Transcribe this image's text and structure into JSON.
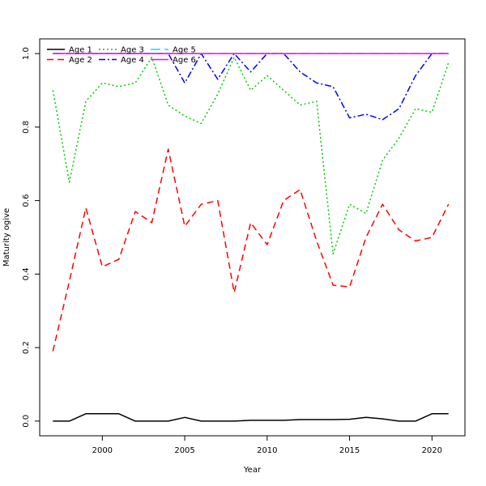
{
  "chart_data": {
    "type": "line",
    "title": "",
    "xlabel": "Year",
    "ylabel": "Maturity ogive",
    "xlim": [
      1996.2,
      2022.0
    ],
    "ylim": [
      -0.04,
      1.04
    ],
    "xticks": [
      2000,
      2005,
      2010,
      2015,
      2020
    ],
    "yticks": [
      0.0,
      0.2,
      0.4,
      0.6,
      0.8,
      1.0
    ],
    "xtick_labels": [
      "2000",
      "2005",
      "2010",
      "2015",
      "2020"
    ],
    "ytick_labels": [
      "0.0",
      "0.2",
      "0.4",
      "0.6",
      "0.8",
      "1.0"
    ],
    "grid": false,
    "legend_position": "top-left",
    "x": [
      1997,
      1998,
      1999,
      2000,
      2001,
      2002,
      2003,
      2004,
      2005,
      2006,
      2007,
      2008,
      2009,
      2010,
      2011,
      2012,
      2013,
      2014,
      2015,
      2016,
      2017,
      2018,
      2019,
      2020,
      2021
    ],
    "series": [
      {
        "name": "Age 1",
        "color": "#000000",
        "dash": "solid",
        "values": [
          0.0,
          0.0,
          0.02,
          0.02,
          0.02,
          0.0,
          0.0,
          0.0,
          0.01,
          0.0,
          0.0,
          0.0,
          0.002,
          0.002,
          0.002,
          0.004,
          0.004,
          0.004,
          0.005,
          0.01,
          0.006,
          0.0,
          0.0,
          0.02,
          0.02
        ]
      },
      {
        "name": "Age 2",
        "color": "#ff0000",
        "dash": "dashed",
        "values": [
          0.19,
          0.38,
          0.58,
          0.42,
          0.44,
          0.57,
          0.54,
          0.74,
          0.53,
          0.59,
          0.6,
          0.35,
          0.54,
          0.48,
          0.6,
          0.63,
          0.49,
          0.37,
          0.365,
          0.5,
          0.59,
          0.52,
          0.49,
          0.5,
          0.59
        ]
      },
      {
        "name": "Age 3",
        "color": "#00cc00",
        "dash": "dotted",
        "values": [
          0.9,
          0.65,
          0.87,
          0.92,
          0.91,
          0.92,
          0.99,
          0.86,
          0.83,
          0.81,
          0.89,
          0.99,
          0.9,
          0.94,
          0.9,
          0.86,
          0.87,
          0.455,
          0.59,
          0.565,
          0.71,
          0.77,
          0.85,
          0.84,
          0.975
        ]
      },
      {
        "name": "Age 4",
        "color": "#0000ff",
        "dash": "dotdash",
        "values": [
          1.0,
          1.0,
          1.0,
          1.0,
          1.0,
          1.0,
          1.0,
          1.0,
          0.92,
          1.0,
          0.93,
          1.0,
          0.95,
          1.0,
          1.0,
          0.95,
          0.92,
          0.91,
          0.825,
          0.835,
          0.82,
          0.85,
          0.94,
          1.0,
          1.0
        ]
      },
      {
        "name": "Age 5",
        "color": "#00e5ee",
        "dash": "longdash",
        "values": [
          1.0,
          1.0,
          1.0,
          1.0,
          1.0,
          1.0,
          1.0,
          1.0,
          1.0,
          1.0,
          1.0,
          1.0,
          1.0,
          1.0,
          1.0,
          1.0,
          1.0,
          1.0,
          1.0,
          1.0,
          1.0,
          1.0,
          1.0,
          1.0,
          1.0
        ]
      },
      {
        "name": "Age 6",
        "color": "#ff00ff",
        "dash": "solid",
        "values": [
          1.0,
          1.0,
          1.0,
          1.0,
          1.0,
          1.0,
          1.0,
          1.0,
          1.0,
          1.0,
          1.0,
          1.0,
          1.0,
          1.0,
          1.0,
          1.0,
          1.0,
          1.0,
          1.0,
          1.0,
          1.0,
          1.0,
          1.0,
          1.0,
          1.0
        ]
      }
    ]
  }
}
